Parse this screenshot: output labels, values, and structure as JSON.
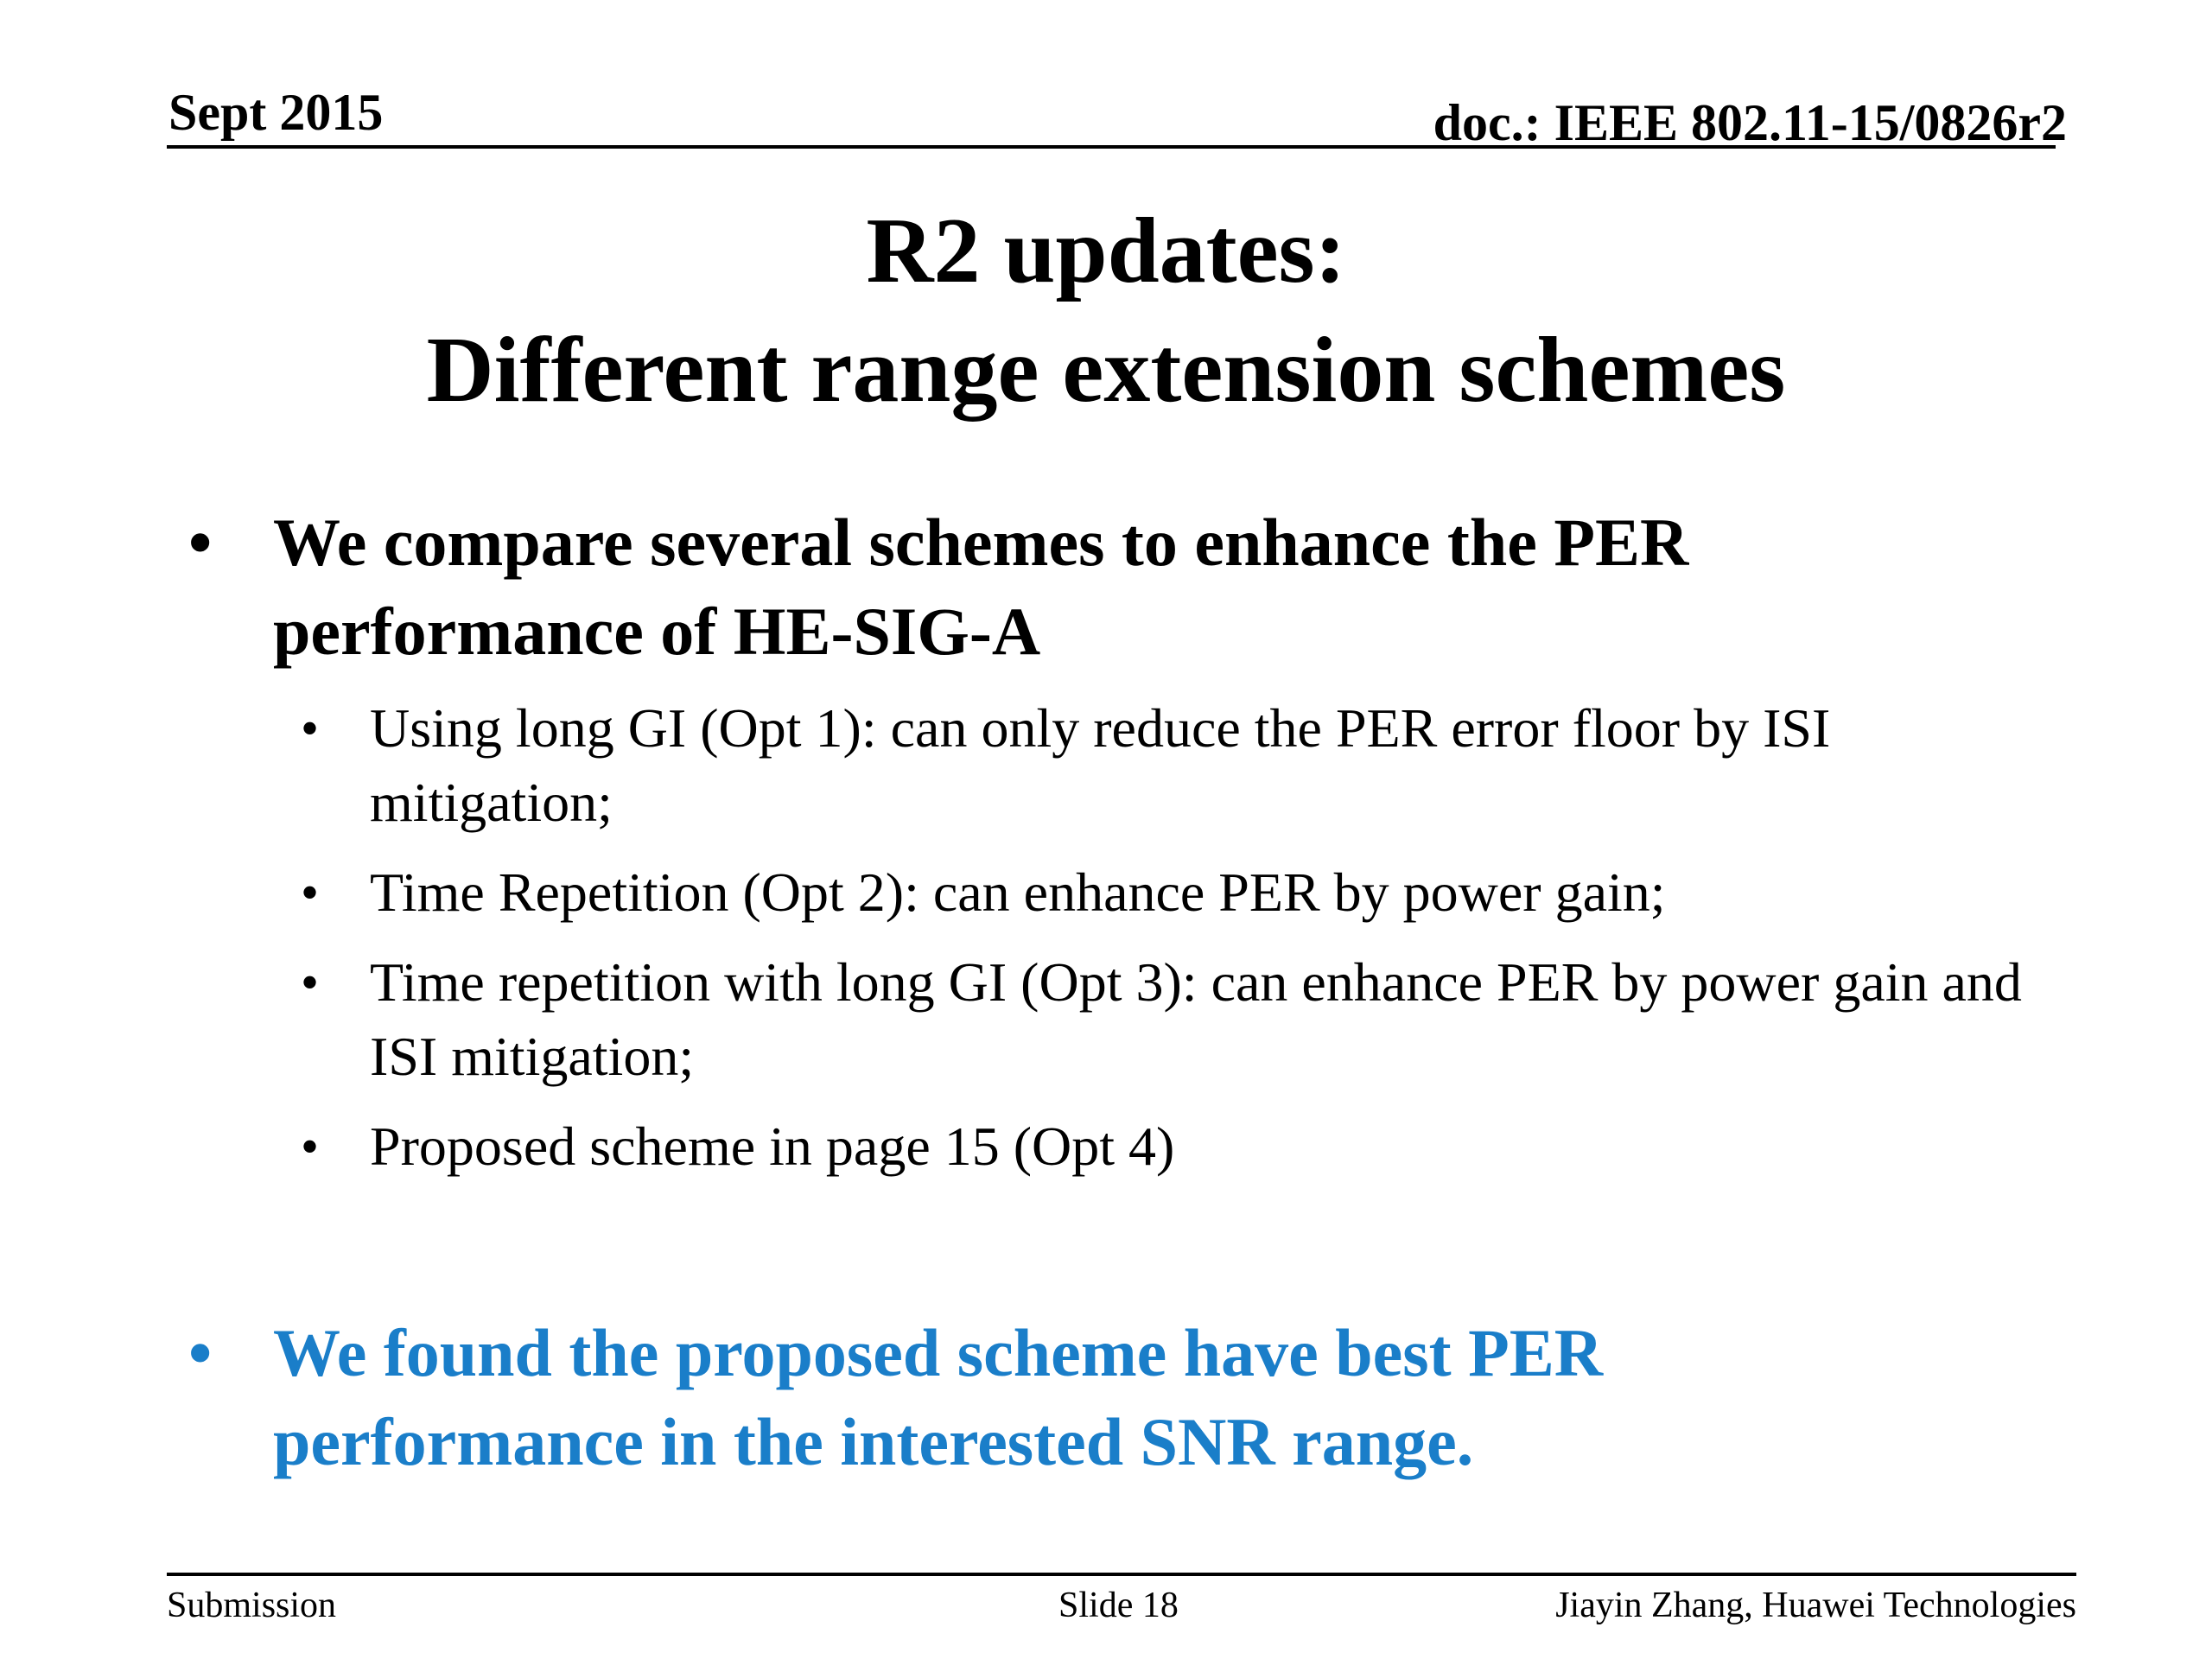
{
  "header": {
    "date": "Sept 2015",
    "doc_id": "doc.: IEEE 802.11-15/0826r2"
  },
  "title": {
    "line1": "R2 updates:",
    "line2": "Different range extension schemes"
  },
  "bullets": [
    {
      "text": "We compare several schemes to enhance the PER performance of HE-SIG-A",
      "sub_items": [
        "Using long GI (Opt 1): can only reduce the PER error floor by ISI mitigation;",
        "Time Repetition (Opt 2): can enhance PER by power gain;",
        "Time repetition with long GI (Opt 3): can enhance PER by power gain and ISI mitigation;",
        "Proposed scheme in page 15 (Opt 4)"
      ]
    },
    {
      "text": "We found the proposed scheme have best PER performance in the interested SNR range.",
      "color": "#1a7ec9"
    }
  ],
  "bullet_glyph": "•",
  "footer": {
    "left": "Submission",
    "center": "Slide 18",
    "right": "Jiayin Zhang, Huawei Technologies"
  }
}
